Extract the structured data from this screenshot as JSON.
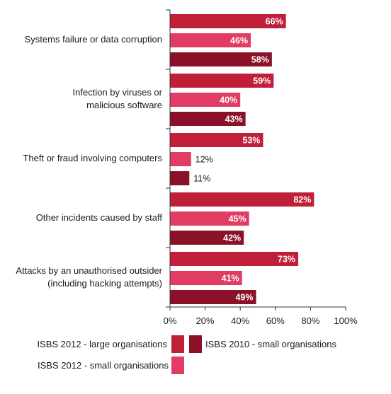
{
  "chart_data": {
    "type": "bar",
    "orientation": "horizontal",
    "categories": [
      [
        "Systems failure or data corruption"
      ],
      [
        "Infection by viruses or",
        "malicious software"
      ],
      [
        "Theft or fraud involving computers"
      ],
      [
        "Other incidents caused by staff"
      ],
      [
        "Attacks by an unauthorised outsider",
        "(including hacking attempts)"
      ]
    ],
    "series": [
      {
        "name": "ISBS 2012 - large organisations",
        "color": "#c01f3a",
        "values": [
          66,
          59,
          53,
          82,
          73
        ]
      },
      {
        "name": "ISBS 2012 - small organisations",
        "color": "#e03c64",
        "values": [
          46,
          40,
          12,
          45,
          41
        ]
      },
      {
        "name": "ISBS 2010 - small organisations",
        "color": "#8a1127",
        "values": [
          58,
          43,
          11,
          42,
          49
        ]
      }
    ],
    "value_suffix": "%",
    "xlim": [
      0,
      100
    ],
    "xticks": [
      "0%",
      "20%",
      "40%",
      "60%",
      "80%",
      "100%"
    ],
    "grid": false,
    "legend_position": "bottom"
  }
}
